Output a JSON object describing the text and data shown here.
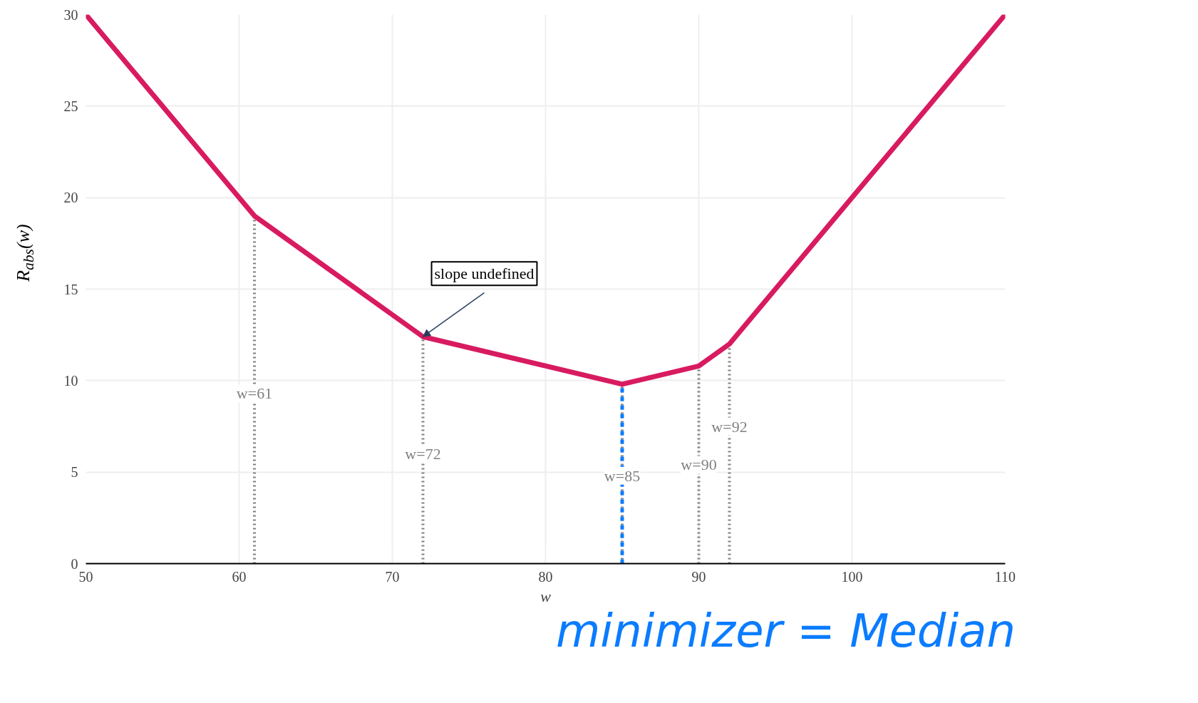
{
  "chart_data": {
    "type": "line",
    "xlabel": "w",
    "ylabel": "R$_{abs}$(w)",
    "x": [
      50,
      61,
      72,
      85,
      90,
      92,
      110
    ],
    "series": [
      {
        "color": "#d81b60",
        "values": [
          30,
          19,
          12.4,
          9.8,
          10.8,
          12,
          30
        ]
      }
    ],
    "xlim": [
      50,
      110
    ],
    "ylim": [
      0,
      30
    ],
    "xticks": [
      50,
      60,
      70,
      80,
      90,
      100,
      110
    ],
    "yticks": [
      0,
      5,
      10,
      15,
      20,
      25,
      30
    ],
    "grid": true,
    "marker": "none",
    "line_style": "solid",
    "ref_lines": [
      {
        "axis": "x",
        "value": 61,
        "label": "w=61",
        "color": "#808080",
        "line_style": "dotted"
      },
      {
        "axis": "x",
        "value": 72,
        "label": "w=72",
        "color": "#808080",
        "line_style": "dotted"
      },
      {
        "axis": "x",
        "value": 85,
        "label": "w=85",
        "color": "#808080",
        "line_style": "dotted"
      },
      {
        "axis": "x",
        "value": 90,
        "label": "w=90",
        "color": "#808080",
        "line_style": "dotted"
      },
      {
        "axis": "x",
        "value": 92,
        "label": "w=92",
        "color": "#808080",
        "line_style": "dotted"
      },
      {
        "axis": "x",
        "value": 85,
        "color": "#0a7cff",
        "line_style": "dashed"
      }
    ],
    "annotations": [
      {
        "text": "slope undefined",
        "x": 72,
        "y": 12.4
      },
      "minimizer = Median"
    ]
  }
}
